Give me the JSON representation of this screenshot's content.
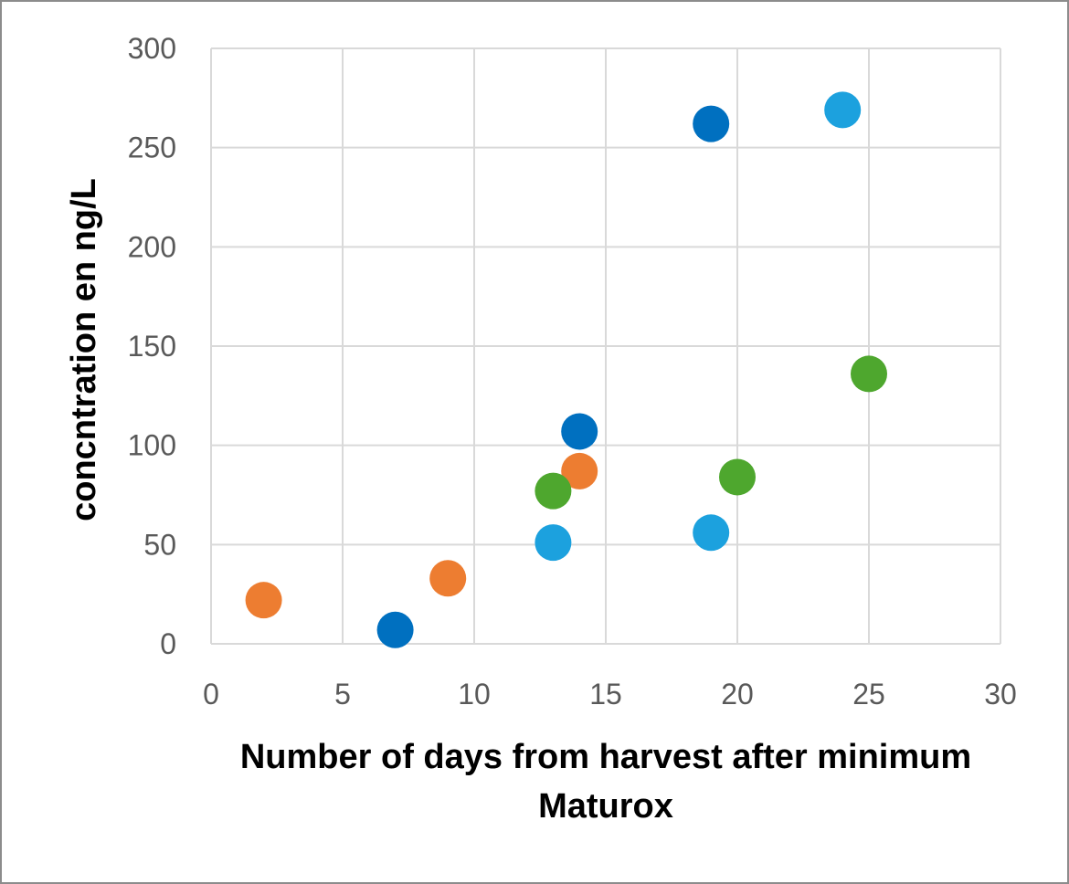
{
  "chart_data": {
    "type": "scatter",
    "title": "",
    "xlabel": "Number of days from harvest after minimum Maturox",
    "xlabel_lines": [
      "Number of days from harvest after minimum",
      "Maturox"
    ],
    "ylabel": "concntration en ng/L",
    "xlim": [
      0,
      30
    ],
    "ylim": [
      0,
      300
    ],
    "x_ticks": [
      "0",
      "5",
      "10",
      "15",
      "20",
      "25",
      "30"
    ],
    "y_ticks": [
      "0",
      "50",
      "100",
      "150",
      "200",
      "250",
      "300"
    ],
    "grid": true,
    "legend": "none",
    "series": [
      {
        "color": "#0070C0",
        "points": [
          [
            7,
            7
          ],
          [
            14,
            107
          ],
          [
            19,
            262
          ]
        ]
      },
      {
        "color": "#ED7D31",
        "points": [
          [
            2,
            22
          ],
          [
            9,
            33
          ],
          [
            14,
            87
          ]
        ]
      },
      {
        "color": "#1CA1DE",
        "points": [
          [
            13,
            51
          ],
          [
            19,
            56
          ],
          [
            24,
            269
          ]
        ]
      },
      {
        "color": "#4EA72E",
        "points": [
          [
            13,
            77
          ],
          [
            20,
            84
          ],
          [
            25,
            136
          ]
        ]
      }
    ]
  }
}
